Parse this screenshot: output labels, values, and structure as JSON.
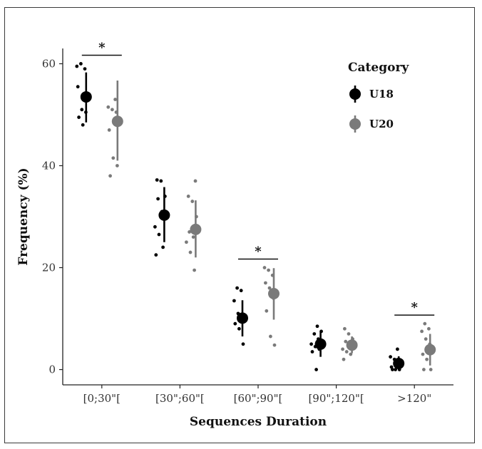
{
  "chart_data": {
    "type": "scatter",
    "title": "",
    "xlabel": "Sequences Duration",
    "ylabel": "Frequency (%)",
    "ylim": [
      -3,
      63
    ],
    "yticks": [
      0,
      20,
      40,
      60
    ],
    "grid": false,
    "categories": [
      "[0;30\"[",
      "[30\";60\"[",
      "[60\";90\"[",
      "[90\";120\"[",
      ">120\""
    ],
    "legend": {
      "title": "Category",
      "placement": "top-right"
    },
    "series": [
      {
        "name": "U18",
        "color": "#000000",
        "mean": [
          53.5,
          30.3,
          10.1,
          5.0,
          1.2
        ],
        "ci_low": [
          48.5,
          25.0,
          6.5,
          2.5,
          0.0
        ],
        "ci_high": [
          58.3,
          35.8,
          13.6,
          7.5,
          2.6
        ],
        "points": [
          [
            59.5,
            60.0,
            59.0,
            55.5,
            51.0,
            50.5,
            49.5,
            48.0
          ],
          [
            37.2,
            37.0,
            34.0,
            33.5,
            31.0,
            28.0,
            26.5,
            24.0,
            22.5
          ],
          [
            16.0,
            15.5,
            13.5,
            11.0,
            10.5,
            9.0,
            8.0,
            5.0
          ],
          [
            8.5,
            7.5,
            7.0,
            6.0,
            5.0,
            4.5,
            4.0,
            3.5,
            0.0
          ],
          [
            4.0,
            2.5,
            2.0,
            1.5,
            0.5,
            0.0,
            0.0,
            0.0
          ]
        ]
      },
      {
        "name": "U20",
        "color": "#7a7a7a",
        "mean": [
          48.7,
          27.5,
          14.9,
          4.8,
          3.9
        ],
        "ci_low": [
          41.0,
          22.0,
          9.8,
          3.2,
          0.8
        ],
        "ci_high": [
          56.7,
          33.2,
          19.9,
          6.5,
          7.0
        ],
        "points": [
          [
            53.0,
            51.5,
            51.0,
            50.5,
            47.0,
            41.5,
            40.0,
            38.0
          ],
          [
            37.0,
            34.0,
            33.0,
            30.0,
            27.0,
            26.0,
            25.0,
            23.0,
            19.5
          ],
          [
            20.0,
            19.5,
            18.5,
            17.0,
            16.0,
            14.0,
            11.5,
            6.5,
            4.8
          ],
          [
            8.0,
            7.0,
            6.0,
            5.5,
            5.0,
            4.0,
            3.5,
            3.0,
            2.0
          ],
          [
            9.0,
            8.0,
            7.5,
            6.0,
            5.0,
            3.0,
            2.0,
            0.0,
            0.0
          ]
        ]
      }
    ],
    "annotations": [
      {
        "category_index": 0,
        "text": "*"
      },
      {
        "category_index": 2,
        "text": "*"
      },
      {
        "category_index": 4,
        "text": "*"
      }
    ]
  }
}
